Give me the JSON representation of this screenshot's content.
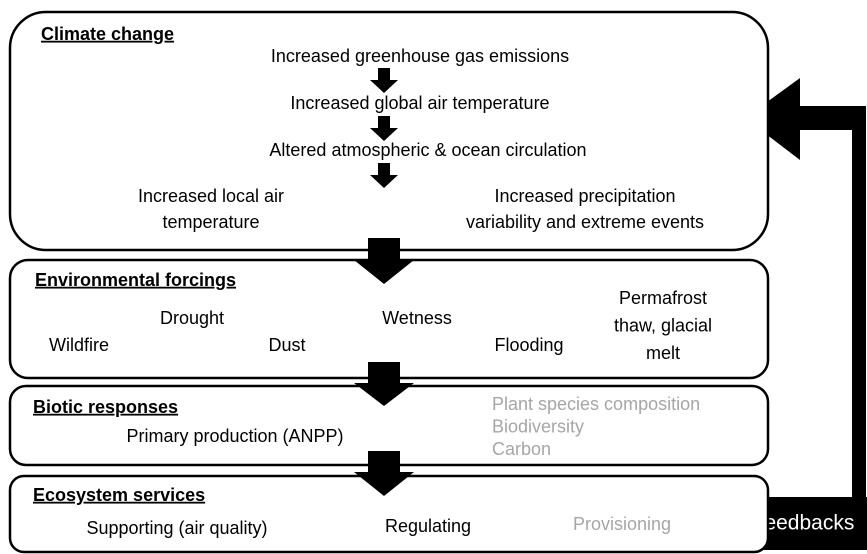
{
  "sections": [
    {
      "title": "Climate change",
      "items": [
        {
          "lines": [
            "Increased greenhouse gas emissions"
          ]
        },
        {
          "lines": [
            "Increased global air temperature"
          ]
        },
        {
          "lines": [
            "Altered atmospheric & ocean circulation"
          ]
        },
        {
          "lines": [
            "Increased local air",
            "temperature"
          ]
        },
        {
          "lines": [
            "Increased precipitation",
            "variability and extreme events"
          ]
        }
      ]
    },
    {
      "title": "Environmental forcings",
      "items": [
        {
          "lines": [
            "Wildfire"
          ]
        },
        {
          "lines": [
            "Drought"
          ]
        },
        {
          "lines": [
            "Dust"
          ]
        },
        {
          "lines": [
            "Wetness"
          ]
        },
        {
          "lines": [
            "Flooding"
          ]
        },
        {
          "lines": [
            "Permafrost",
            "thaw, glacial",
            "melt"
          ]
        }
      ]
    },
    {
      "title": "Biotic responses",
      "items": [
        {
          "lines": [
            "Primary production (ANPP)"
          ]
        },
        {
          "lines": [
            "Plant species composition",
            "Biodiversity",
            "Carbon"
          ]
        }
      ]
    },
    {
      "title": "Ecosystem services",
      "items": [
        {
          "lines": [
            "Supporting (air quality)"
          ]
        },
        {
          "lines": [
            "Regulating"
          ]
        },
        {
          "lines": [
            "Provisioning"
          ]
        }
      ]
    }
  ],
  "feedback_label": "Feedbacks"
}
